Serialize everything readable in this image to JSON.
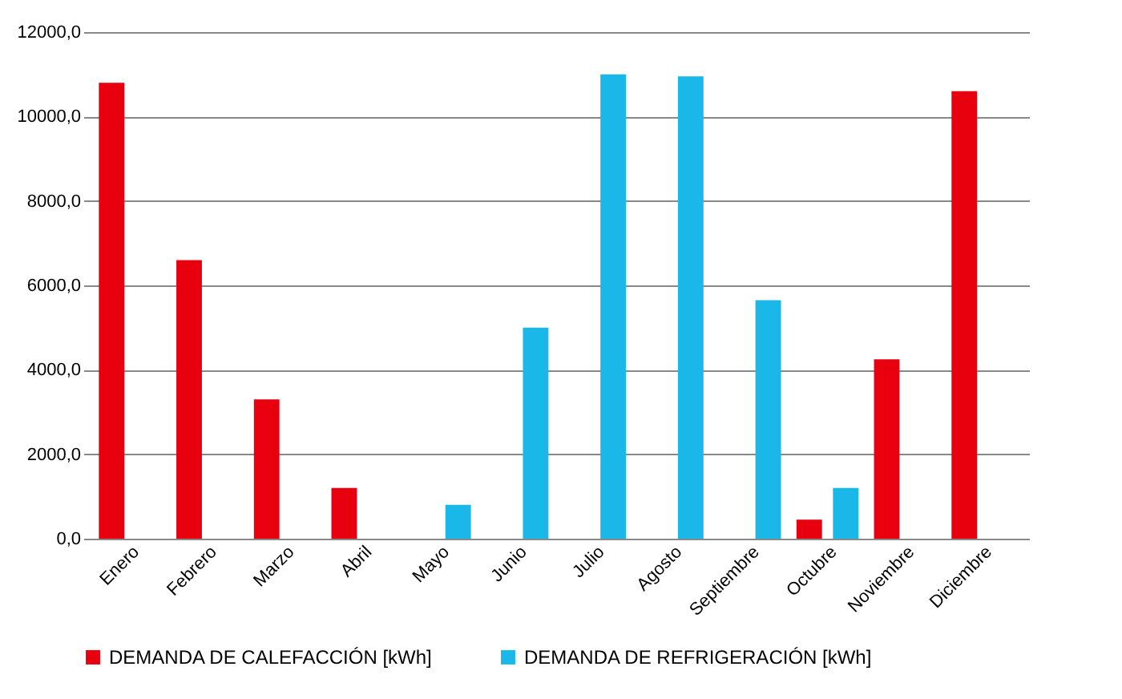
{
  "chart_data": {
    "type": "bar",
    "categories": [
      "Enero",
      "Febrero",
      "Marzo",
      "Abril",
      "Mayo",
      "Junio",
      "Julio",
      "Agosto",
      "Septiembre",
      "Octubre",
      "Noviembre",
      "Diciembre"
    ],
    "series": [
      {
        "name": "DEMANDA DE CALEFACCIÓN [kWh]",
        "color": "#e8000f",
        "values": [
          10800,
          6600,
          3300,
          1200,
          null,
          null,
          null,
          null,
          null,
          450,
          4250,
          10600
        ]
      },
      {
        "name": "DEMANDA DE REFRIGERACIÓN [kWh]",
        "color": "#1ab8e8",
        "values": [
          null,
          null,
          null,
          null,
          800,
          5000,
          11000,
          10950,
          5650,
          1200,
          null,
          null
        ]
      }
    ],
    "ylim": [
      0,
      12000
    ],
    "yticks": [
      {
        "value": 0,
        "label": "0,0"
      },
      {
        "value": 2000,
        "label": "2000,0"
      },
      {
        "value": 4000,
        "label": "4000,0"
      },
      {
        "value": 6000,
        "label": "6000,0"
      },
      {
        "value": 8000,
        "label": "8000,0"
      },
      {
        "value": 10000,
        "label": "10000,0"
      },
      {
        "value": 12000,
        "label": "12000,0"
      }
    ],
    "grid": "y",
    "legend": "bottom"
  }
}
